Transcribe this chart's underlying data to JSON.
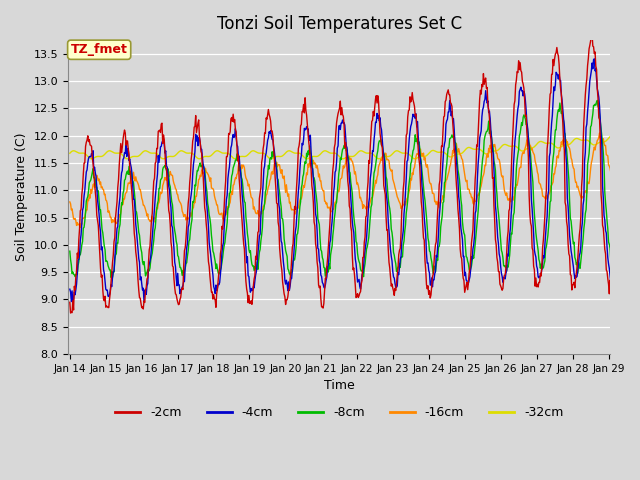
{
  "title": "Tonzi Soil Temperatures Set C",
  "xlabel": "Time",
  "ylabel": "Soil Temperature (C)",
  "ylim": [
    8.0,
    13.75
  ],
  "yticks": [
    8.0,
    8.5,
    9.0,
    9.5,
    10.0,
    10.5,
    11.0,
    11.5,
    12.0,
    12.5,
    13.0,
    13.5
  ],
  "colors": {
    "-2cm": "#cc0000",
    "-4cm": "#0000cc",
    "-8cm": "#00bb00",
    "-16cm": "#ff8800",
    "-32cm": "#dddd00"
  },
  "annotation_text": "TZ_fmet",
  "annotation_color": "#cc0000",
  "annotation_bg": "#ffffcc",
  "background_color": "#d8d8d8",
  "legend_labels": [
    "-2cm",
    "-4cm",
    "-8cm",
    "-16cm",
    "-32cm"
  ],
  "x_tick_labels": [
    "Jan 14",
    "Jan 15",
    "Jan 16",
    "Jan 17",
    "Jan 18",
    "Jan 19",
    "Jan 20",
    "Jan 21",
    "Jan 22",
    "Jan 23",
    "Jan 24",
    "Jan 25",
    "Jan 26",
    "Jan 27",
    "Jan 28",
    "Jan 29"
  ],
  "n_days": 16,
  "start_day": 14
}
